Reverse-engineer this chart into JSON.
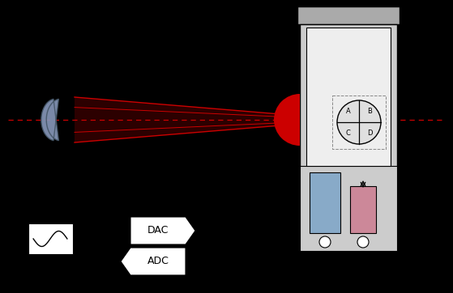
{
  "bg_color": "#000000",
  "lens_color": "#8899bb",
  "beam_color": "#cc0000",
  "housing_fill": "#cccccc",
  "housing_top_fill": "#aaaaaa",
  "white_box_fill": "#eeeeee",
  "blue_bar_color": "#88aac8",
  "pink_bar_color": "#cc8899",
  "spot_color": "#cc0000",
  "qpd_circle_color": "#e0e0e0",
  "qpd_labels": [
    "A",
    "B",
    "C",
    "D"
  ],
  "dac_label": "DAC",
  "adc_label": "ADC",
  "figw": 5.59,
  "figh": 3.62,
  "dpi": 100
}
